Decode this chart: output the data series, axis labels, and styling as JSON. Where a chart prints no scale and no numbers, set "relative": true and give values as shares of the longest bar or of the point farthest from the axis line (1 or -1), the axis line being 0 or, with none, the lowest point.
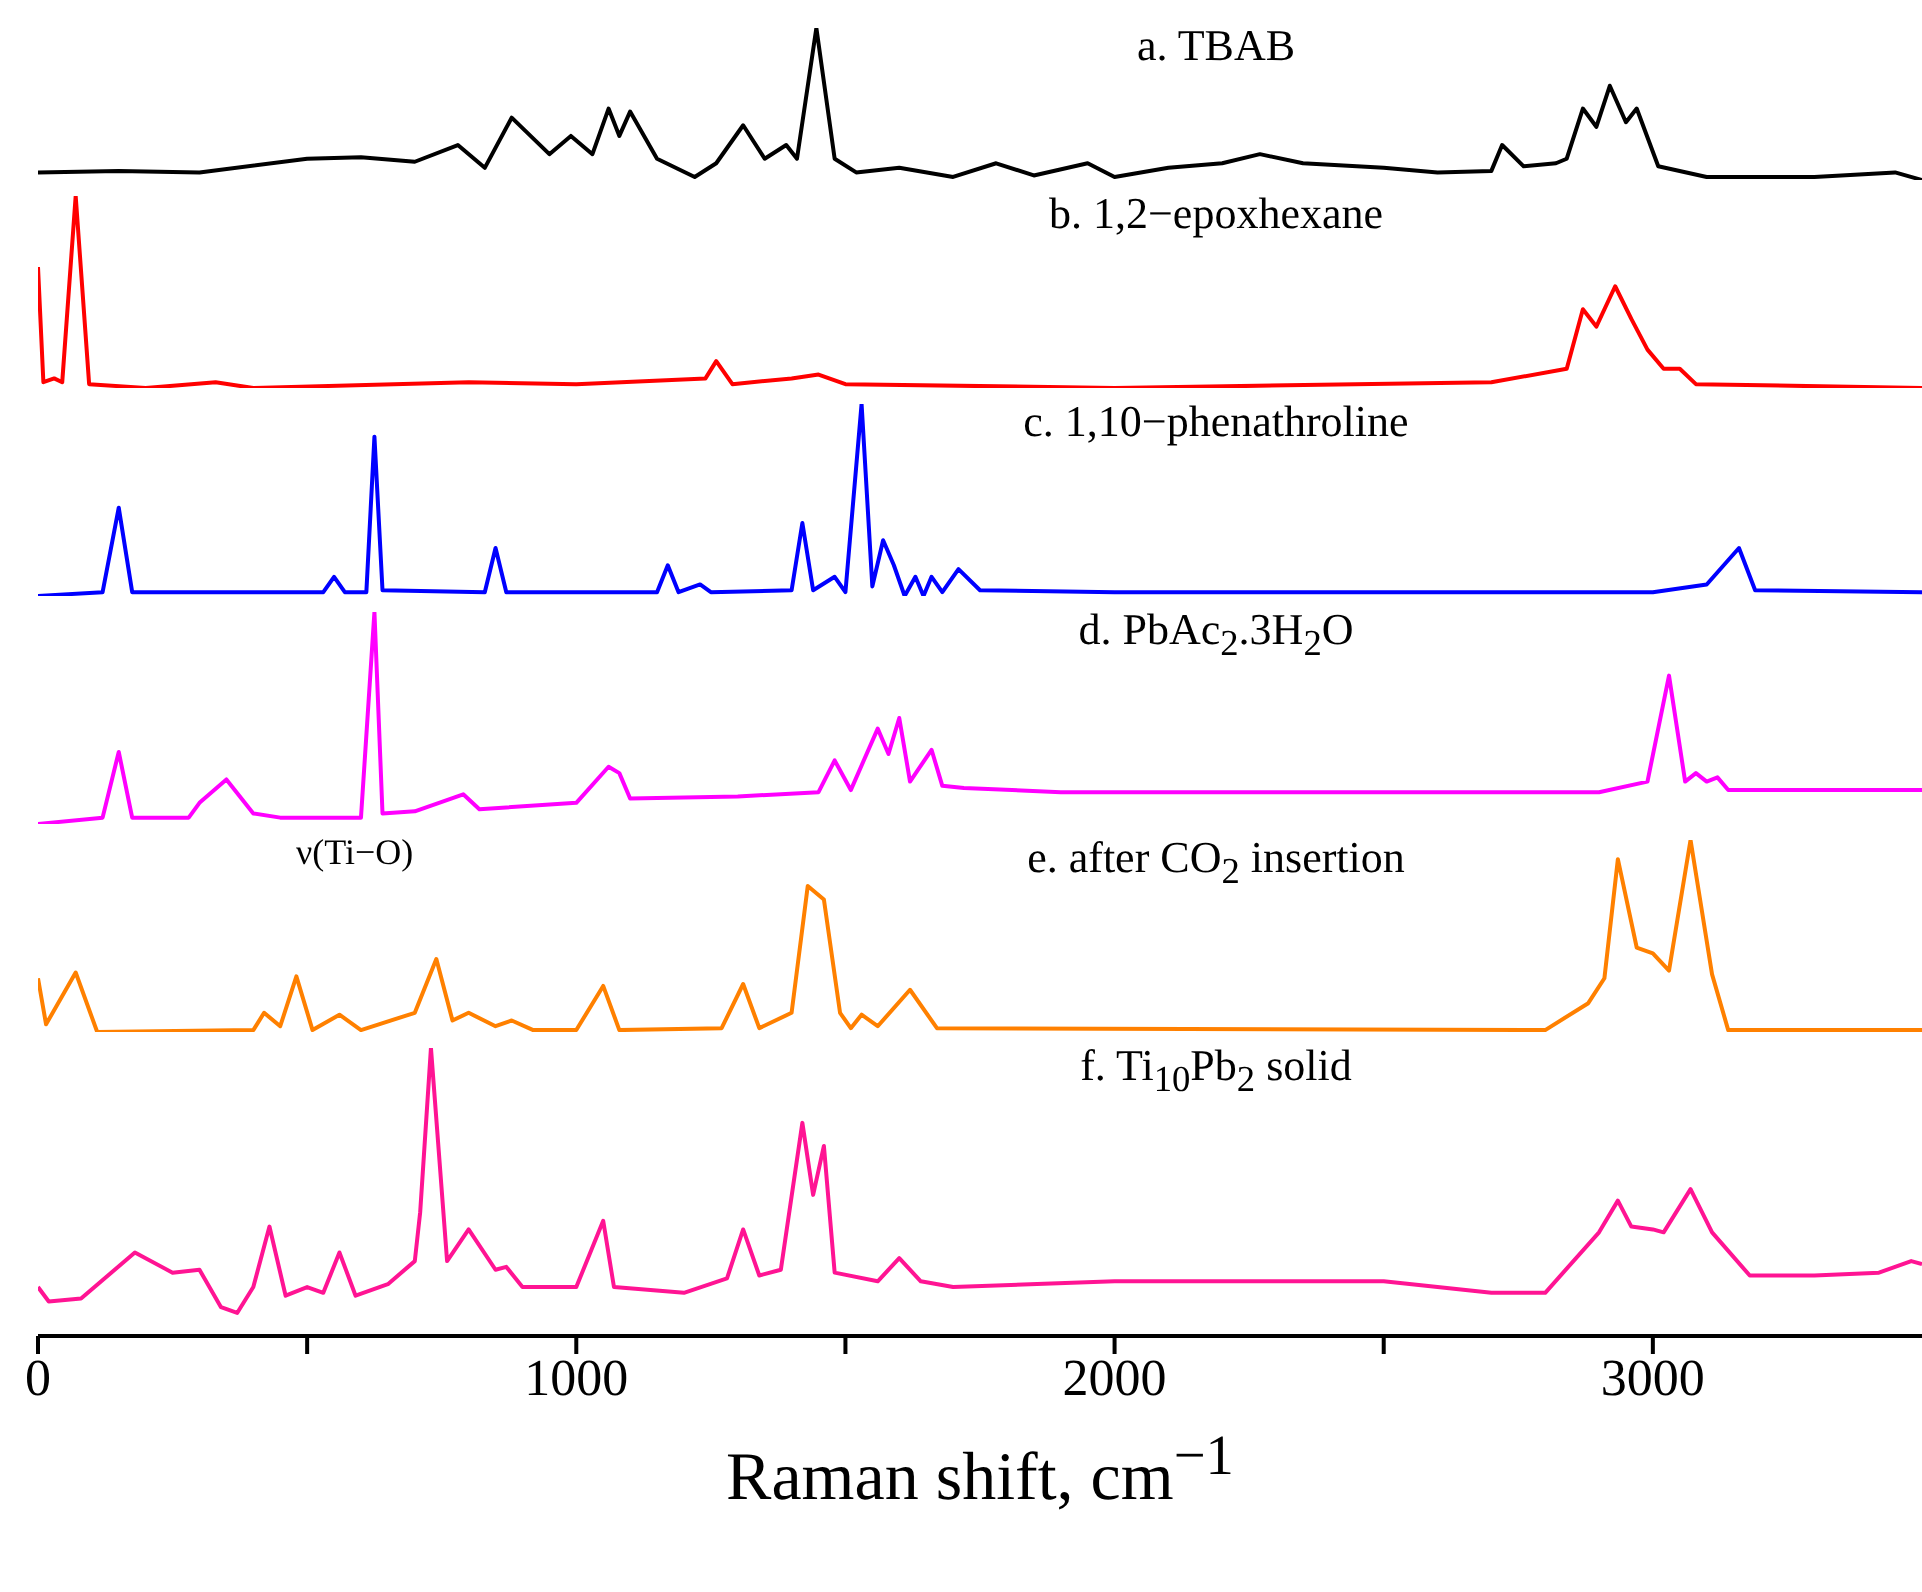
{
  "chart_data": [
    {
      "type": "line",
      "relative": true,
      "xlim": [
        0,
        3500
      ],
      "tick_labels": false,
      "x": [
        0,
        150,
        300,
        500,
        600,
        700,
        780,
        830,
        880,
        950,
        990,
        1030,
        1060,
        1080,
        1100,
        1150,
        1220,
        1260,
        1310,
        1350,
        1390,
        1410,
        1446,
        1480,
        1520,
        1600,
        1700,
        1780,
        1850,
        1950,
        2000,
        2100,
        2200,
        2270,
        2350,
        2500,
        2600,
        2700,
        2720,
        2760,
        2820,
        2840,
        2870,
        2895,
        2920,
        2950,
        2970,
        3010,
        3100,
        3300,
        3450,
        3500
      ],
      "series": [
        {
          "name": "a. TBAB",
          "color": "#000000",
          "values": [
            0.05,
            0.06,
            0.05,
            0.14,
            0.15,
            0.12,
            0.23,
            0.08,
            0.41,
            0.17,
            0.29,
            0.17,
            0.47,
            0.29,
            0.45,
            0.14,
            0.02,
            0.11,
            0.36,
            0.14,
            0.23,
            0.14,
            1,
            0.14,
            0.05,
            0.08,
            0.02,
            0.11,
            0.03,
            0.11,
            0.02,
            0.08,
            0.11,
            0.17,
            0.11,
            0.08,
            0.05,
            0.06,
            0.23,
            0.09,
            0.11,
            0.14,
            0.47,
            0.35,
            0.62,
            0.38,
            0.47,
            0.09,
            0.02,
            0.02,
            0.05,
            0
          ]
        }
      ]
    },
    {
      "type": "line",
      "relative": true,
      "xlim": [
        0,
        3500
      ],
      "tick_labels": false,
      "x": [
        0,
        10,
        30,
        45,
        70,
        95,
        200,
        330,
        400,
        800,
        1000,
        1240,
        1260,
        1290,
        1400,
        1450,
        1500,
        2000,
        2700,
        2840,
        2870,
        2895,
        2930,
        2960,
        2990,
        3020,
        3050,
        3080,
        3500
      ],
      "series": [
        {
          "name": "b. 1,2−epoxhexane",
          "color": "#ff0000",
          "values": [
            0.63,
            0.03,
            0.05,
            0.03,
            1,
            0.02,
            0,
            0.03,
            0,
            0.03,
            0.02,
            0.05,
            0.14,
            0.02,
            0.05,
            0.07,
            0.02,
            0,
            0.03,
            0.1,
            0.41,
            0.32,
            0.53,
            0.36,
            0.2,
            0.1,
            0.1,
            0.02,
            0
          ]
        }
      ]
    },
    {
      "type": "line",
      "relative": true,
      "xlim": [
        0,
        3500
      ],
      "tick_labels": false,
      "x": [
        0,
        120,
        150,
        175,
        530,
        550,
        570,
        610,
        625,
        640,
        830,
        850,
        870,
        1150,
        1170,
        1190,
        1230,
        1250,
        1400,
        1420,
        1440,
        1480,
        1500,
        1530,
        1550,
        1570,
        1590,
        1610,
        1630,
        1645,
        1660,
        1680,
        1710,
        1750,
        2000,
        3000,
        3100,
        3160,
        3190,
        3500
      ],
      "series": [
        {
          "name": "c. 1,10−phenathroline",
          "color": "#0000ff",
          "values": [
            0,
            0.02,
            0.46,
            0.02,
            0.02,
            0.1,
            0.02,
            0.02,
            0.83,
            0.03,
            0.02,
            0.25,
            0.02,
            0.02,
            0.16,
            0.02,
            0.06,
            0.02,
            0.03,
            0.38,
            0.03,
            0.1,
            0.02,
            1,
            0.05,
            0.29,
            0.16,
            0,
            0.1,
            0,
            0.1,
            0.02,
            0.14,
            0.03,
            0.02,
            0.02,
            0.06,
            0.25,
            0.03,
            0.02
          ]
        }
      ]
    },
    {
      "type": "line",
      "relative": true,
      "xlim": [
        0,
        3500
      ],
      "tick_labels": false,
      "x": [
        0,
        120,
        150,
        175,
        280,
        300,
        350,
        400,
        450,
        600,
        625,
        640,
        700,
        790,
        820,
        1000,
        1060,
        1080,
        1100,
        1300,
        1450,
        1480,
        1510,
        1560,
        1580,
        1600,
        1620,
        1660,
        1680,
        1720,
        1900,
        2500,
        2900,
        2990,
        3030,
        3060,
        3080,
        3100,
        3120,
        3140,
        3500
      ],
      "series": [
        {
          "name": "d. PbAc$_{2}$.3H$_{2}$O",
          "color": "#ff00ff",
          "values": [
            0,
            0.03,
            0.34,
            0.03,
            0.03,
            0.1,
            0.21,
            0.05,
            0.03,
            0.03,
            1,
            0.05,
            0.06,
            0.14,
            0.07,
            0.1,
            0.27,
            0.24,
            0.12,
            0.13,
            0.15,
            0.3,
            0.16,
            0.45,
            0.33,
            0.5,
            0.2,
            0.35,
            0.18,
            0.17,
            0.15,
            0.15,
            0.15,
            0.2,
            0.7,
            0.2,
            0.24,
            0.2,
            0.22,
            0.16,
            0.16
          ]
        }
      ]
    },
    {
      "type": "line",
      "relative": true,
      "xlim": [
        0,
        3500
      ],
      "tick_labels": false,
      "annotations": [
        "ν(Ti−O)"
      ],
      "x": [
        0,
        15,
        70,
        110,
        400,
        420,
        450,
        480,
        510,
        560,
        600,
        700,
        740,
        770,
        800,
        850,
        880,
        920,
        1000,
        1050,
        1080,
        1270,
        1310,
        1340,
        1400,
        1430,
        1460,
        1490,
        1510,
        1530,
        1560,
        1620,
        1670,
        2800,
        2880,
        2910,
        2935,
        2970,
        3000,
        3030,
        3070,
        3110,
        3140,
        3500
      ],
      "series": [
        {
          "name": "e. after CO$_{2}$ insertion",
          "color": "#ff8000",
          "values": [
            0.28,
            0.04,
            0.31,
            0,
            0.01,
            0.1,
            0.03,
            0.29,
            0.01,
            0.09,
            0.01,
            0.1,
            0.38,
            0.06,
            0.1,
            0.03,
            0.06,
            0.01,
            0.01,
            0.24,
            0.01,
            0.02,
            0.25,
            0.02,
            0.1,
            0.76,
            0.69,
            0.1,
            0.02,
            0.09,
            0.03,
            0.22,
            0.02,
            0.01,
            0.15,
            0.28,
            0.9,
            0.44,
            0.41,
            0.32,
            1,
            0.3,
            0.01,
            0.01
          ]
        }
      ]
    },
    {
      "type": "line",
      "relative": true,
      "xlim": [
        0,
        3500
      ],
      "tick_labels": "x",
      "xlabel": "Raman shift, cm$^{−1}$",
      "xticks": [
        0,
        {
          "value": 500,
          "label": null
        },
        1000,
        {
          "value": 1500,
          "label": null
        },
        2000,
        {
          "value": 2500,
          "label": null
        },
        3000
      ],
      "x": [
        0,
        20,
        80,
        180,
        250,
        300,
        340,
        370,
        400,
        430,
        460,
        500,
        530,
        560,
        590,
        650,
        700,
        710,
        730,
        760,
        800,
        850,
        870,
        900,
        1000,
        1050,
        1070,
        1200,
        1280,
        1310,
        1340,
        1380,
        1420,
        1440,
        1460,
        1480,
        1560,
        1600,
        1640,
        1700,
        2000,
        2500,
        2700,
        2800,
        2900,
        2935,
        2960,
        3000,
        3020,
        3070,
        3110,
        3180,
        3300,
        3420,
        3480,
        3500
      ],
      "series": [
        {
          "name": "f. Ti$_{10}$Pb$_{2}$ solid",
          "color": "#ff1493",
          "values": [
            0.17,
            0.12,
            0.13,
            0.29,
            0.22,
            0.23,
            0.1,
            0.08,
            0.17,
            0.38,
            0.14,
            0.17,
            0.15,
            0.29,
            0.14,
            0.18,
            0.26,
            0.43,
            1,
            0.26,
            0.37,
            0.23,
            0.24,
            0.17,
            0.17,
            0.4,
            0.17,
            0.15,
            0.2,
            0.37,
            0.21,
            0.23,
            0.74,
            0.49,
            0.66,
            0.22,
            0.19,
            0.27,
            0.19,
            0.17,
            0.19,
            0.19,
            0.15,
            0.15,
            0.36,
            0.47,
            0.38,
            0.37,
            0.36,
            0.51,
            0.36,
            0.21,
            0.21,
            0.22,
            0.26,
            0.25
          ]
        }
      ]
    }
  ]
}
